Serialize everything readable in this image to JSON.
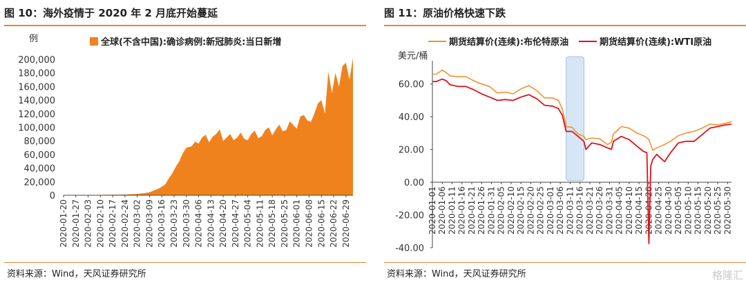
{
  "left": {
    "title": "图 10：海外疫情于 2020 年 2 月底开始蔓延",
    "source": "资料来源：Wind，天风证券研究所"
  },
  "right": {
    "title": "图 11：原油价格快速下跌",
    "source": "资料来源：Wind，天风证券研究所",
    "watermark": "格隆汇"
  },
  "colors": {
    "accent": "#E8832A",
    "area": "#F0821E",
    "brent": "#F0922F",
    "wti": "#E0101A",
    "shade": "#C9DDF0"
  },
  "chart_data": [
    {
      "type": "area",
      "title": "",
      "ylabel": "例",
      "ylim": [
        0,
        200000
      ],
      "yticks": [
        "200,000",
        "180,000",
        "160,000",
        "140,000",
        "120,000",
        "100,000",
        "80,000",
        "60,000",
        "40,000",
        "20,000",
        "0"
      ],
      "xticks": [
        "2020-01-20",
        "2020-01-27",
        "2020-02-03",
        "2020-02-10",
        "2020-02-17",
        "2020-02-24",
        "2020-03-02",
        "2020-03-09",
        "2020-03-16",
        "2020-03-23",
        "2020-03-30",
        "2020-04-06",
        "2020-04-13",
        "2020-04-20",
        "2020-04-27",
        "2020-05-04",
        "2020-05-11",
        "2020-05-18",
        "2020-05-25",
        "2020-06-01",
        "2020-06-08",
        "2020-06-15",
        "2020-06-22",
        "2020-06-29"
      ],
      "legend": "top",
      "series": [
        {
          "name": "全球(不含中国):确诊病例:新冠肺炎:当日新增",
          "x": [
            "2020-01-20",
            "2020-02-24",
            "2020-03-02",
            "2020-03-06",
            "2020-03-09",
            "2020-03-12",
            "2020-03-15",
            "2020-03-18",
            "2020-03-20",
            "2020-03-22",
            "2020-03-24",
            "2020-03-26",
            "2020-03-28",
            "2020-03-30",
            "2020-04-02",
            "2020-04-04",
            "2020-04-06",
            "2020-04-08",
            "2020-04-10",
            "2020-04-12",
            "2020-04-14",
            "2020-04-16",
            "2020-04-18",
            "2020-04-20",
            "2020-04-22",
            "2020-04-24",
            "2020-04-26",
            "2020-04-28",
            "2020-04-30",
            "2020-05-02",
            "2020-05-04",
            "2020-05-06",
            "2020-05-08",
            "2020-05-10",
            "2020-05-12",
            "2020-05-14",
            "2020-05-16",
            "2020-05-18",
            "2020-05-20",
            "2020-05-22",
            "2020-05-24",
            "2020-05-26",
            "2020-05-28",
            "2020-05-30",
            "2020-06-01",
            "2020-06-03",
            "2020-06-05",
            "2020-06-07",
            "2020-06-09",
            "2020-06-11",
            "2020-06-13",
            "2020-06-15",
            "2020-06-17",
            "2020-06-19",
            "2020-06-21",
            "2020-06-23",
            "2020-06-25",
            "2020-06-27",
            "2020-06-29",
            "2020-07-01",
            "2020-07-03"
          ],
          "values": [
            0,
            1000,
            2000,
            3000,
            4500,
            7500,
            11000,
            16000,
            25000,
            32000,
            42000,
            50000,
            62000,
            70000,
            72000,
            79000,
            76000,
            85000,
            89000,
            78000,
            86000,
            90000,
            97000,
            80000,
            85000,
            90000,
            81000,
            85000,
            92000,
            83000,
            81000,
            90000,
            95000,
            84000,
            87000,
            96000,
            100000,
            88000,
            97000,
            104000,
            94000,
            96000,
            109000,
            103000,
            98000,
            116000,
            118000,
            110000,
            108000,
            120000,
            135000,
            140000,
            120000,
            182000,
            150000,
            180000,
            160000,
            190000,
            195000,
            170000,
            202000
          ]
        }
      ]
    },
    {
      "type": "line",
      "title": "",
      "ylabel": "美元/桶",
      "ylim": [
        -40,
        70
      ],
      "yticks": [
        "60.00",
        "40.00",
        "20.00",
        "0.00",
        "-20.00",
        "-40.00"
      ],
      "xticks": [
        "2020-01-01",
        "2020-01-06",
        "2020-01-11",
        "2020-01-16",
        "2020-01-21",
        "2020-01-26",
        "2020-01-31",
        "2020-02-05",
        "2020-02-10",
        "2020-02-15",
        "2020-02-20",
        "2020-02-25",
        "2020-03-01",
        "2020-03-06",
        "2020-03-11",
        "2020-03-16",
        "2020-03-21",
        "2020-03-26",
        "2020-03-31",
        "2020-04-05",
        "2020-04-10",
        "2020-04-15",
        "2020-04-20",
        "2020-04-25",
        "2020-04-30",
        "2020-05-05",
        "2020-05-10",
        "2020-05-15",
        "2020-05-20",
        "2020-05-25",
        "2020-05-30"
      ],
      "legend": "top",
      "shaded_range": [
        "2020-03-09",
        "2020-03-18"
      ],
      "series": [
        {
          "name": "期货结算价(连续):布伦特原油",
          "x": [
            "2020-01-01",
            "2020-01-03",
            "2020-01-06",
            "2020-01-08",
            "2020-01-10",
            "2020-01-14",
            "2020-01-18",
            "2020-01-22",
            "2020-01-26",
            "2020-01-30",
            "2020-02-03",
            "2020-02-07",
            "2020-02-11",
            "2020-02-15",
            "2020-02-19",
            "2020-02-23",
            "2020-02-27",
            "2020-03-02",
            "2020-03-05",
            "2020-03-07",
            "2020-03-09",
            "2020-03-12",
            "2020-03-15",
            "2020-03-18",
            "2020-03-19",
            "2020-03-22",
            "2020-03-26",
            "2020-03-30",
            "2020-04-01",
            "2020-04-02",
            "2020-04-06",
            "2020-04-10",
            "2020-04-14",
            "2020-04-18",
            "2020-04-20",
            "2020-04-22",
            "2020-04-24",
            "2020-04-28",
            "2020-05-01",
            "2020-05-05",
            "2020-05-09",
            "2020-05-13",
            "2020-05-17",
            "2020-05-21",
            "2020-05-25",
            "2020-05-29",
            "2020-06-01"
          ],
          "values": [
            66,
            66,
            68.5,
            67,
            65,
            64.5,
            64.5,
            62,
            60,
            58.5,
            54.5,
            55,
            54,
            57,
            59,
            56,
            51.5,
            51.5,
            50,
            45,
            34,
            33.5,
            29.5,
            28,
            26,
            27,
            26.5,
            23,
            24.5,
            29.5,
            34,
            33,
            30,
            28,
            26,
            19.5,
            21,
            23,
            25,
            28.5,
            30,
            31,
            33,
            35.5,
            35,
            36,
            37
          ]
        },
        {
          "name": "期货结算价(连续):WTI原油",
          "x": [
            "2020-01-01",
            "2020-01-03",
            "2020-01-06",
            "2020-01-08",
            "2020-01-10",
            "2020-01-14",
            "2020-01-18",
            "2020-01-22",
            "2020-01-26",
            "2020-01-30",
            "2020-02-03",
            "2020-02-07",
            "2020-02-11",
            "2020-02-15",
            "2020-02-19",
            "2020-02-23",
            "2020-02-27",
            "2020-03-02",
            "2020-03-05",
            "2020-03-07",
            "2020-03-09",
            "2020-03-12",
            "2020-03-15",
            "2020-03-18",
            "2020-03-19",
            "2020-03-22",
            "2020-03-26",
            "2020-03-30",
            "2020-04-01",
            "2020-04-02",
            "2020-04-06",
            "2020-04-10",
            "2020-04-14",
            "2020-04-17",
            "2020-04-19",
            "2020-04-20",
            "2020-04-21",
            "2020-04-22",
            "2020-04-24",
            "2020-04-28",
            "2020-05-01",
            "2020-05-05",
            "2020-05-09",
            "2020-05-13",
            "2020-05-17",
            "2020-05-21",
            "2020-05-25",
            "2020-05-29",
            "2020-06-01"
          ],
          "values": [
            61.5,
            61.5,
            63,
            62,
            59.5,
            58.5,
            58.5,
            56.5,
            54,
            52,
            50,
            50.5,
            50,
            52,
            53.5,
            51,
            47,
            46.5,
            45,
            41,
            31,
            31,
            28,
            25,
            20,
            24,
            23,
            21,
            20,
            25,
            28,
            26,
            22,
            19,
            18,
            -37.5,
            10,
            14,
            17,
            12.5,
            18,
            24,
            25,
            25,
            29,
            33,
            34,
            35,
            35.5
          ]
        }
      ]
    }
  ]
}
